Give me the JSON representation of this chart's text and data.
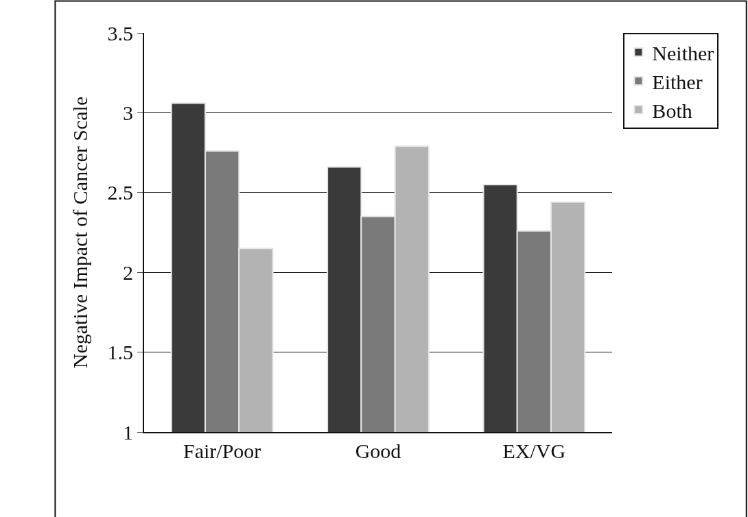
{
  "chart_data": {
    "type": "bar",
    "ylabel": "Negative Impact of Cancer Scale",
    "categories": [
      "Fair/Poor",
      "Good",
      "EX/VG"
    ],
    "series": [
      {
        "name": "Neither",
        "color": "#3a3a3a",
        "values": [
          3.06,
          2.66,
          2.55
        ]
      },
      {
        "name": "Either",
        "color": "#7a7a7a",
        "values": [
          2.76,
          2.35,
          2.26
        ]
      },
      {
        "name": "Both",
        "color": "#b3b3b3",
        "values": [
          2.15,
          2.79,
          2.44
        ]
      }
    ],
    "ylim": [
      1,
      3.5
    ],
    "yticks": [
      1,
      1.5,
      2,
      2.5,
      3,
      3.5
    ],
    "grid": "y",
    "legend": "top right"
  }
}
